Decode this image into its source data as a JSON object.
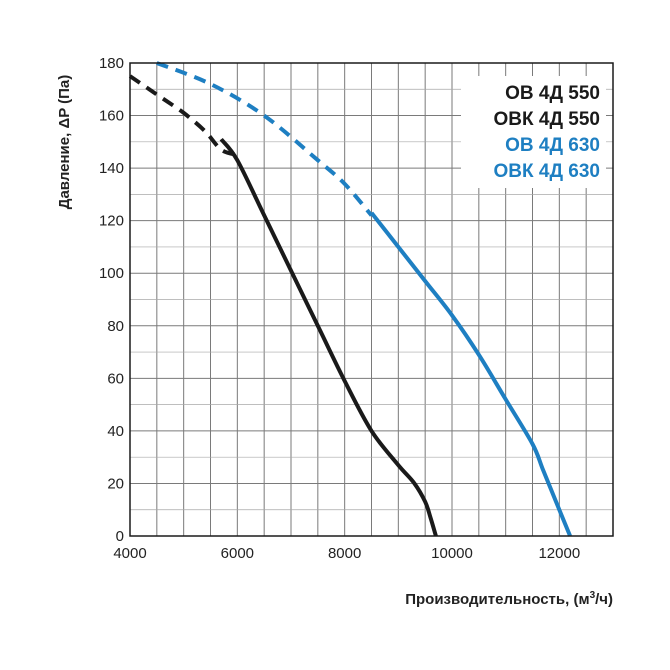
{
  "chart_data": {
    "type": "line",
    "xlabel": "Производительность, (м³/ч)",
    "xlabel_main": "Производительность, (м",
    "xlabel_sup": "3",
    "xlabel_tail": "/ч)",
    "ylabel": "Давление, ΔP (Па)",
    "xlim": [
      4000,
      13000
    ],
    "ylim": [
      0,
      180
    ],
    "x_ticks": [
      4000,
      6000,
      8000,
      10000,
      12000
    ],
    "y_ticks": [
      0,
      20,
      40,
      60,
      80,
      100,
      120,
      140,
      160,
      180
    ],
    "grid": true,
    "legend_position": "top-right",
    "legend": [
      {
        "label": "ОВ 4Д 550",
        "color": "#1a1a1a"
      },
      {
        "label": "ОВК 4Д 550",
        "color": "#1a1a1a"
      },
      {
        "label": "ОВ 4Д 630",
        "color": "#1e7fc2"
      },
      {
        "label": "ОВК 4Д 630",
        "color": "#1e7fc2"
      }
    ],
    "series": [
      {
        "color": "#1a1a1a",
        "dashed_points": [
          [
            4000,
            175
          ],
          [
            4500,
            168
          ],
          [
            5000,
            161
          ],
          [
            5400,
            154
          ],
          [
            5700,
            147
          ],
          [
            6000,
            145
          ]
        ],
        "solid_points": [
          [
            5700,
            151
          ],
          [
            6000,
            143
          ],
          [
            6500,
            122
          ],
          [
            7000,
            101
          ],
          [
            7500,
            80
          ],
          [
            8000,
            59
          ],
          [
            8500,
            40
          ],
          [
            9000,
            27
          ],
          [
            9300,
            20
          ],
          [
            9500,
            13
          ],
          [
            9600,
            7
          ],
          [
            9700,
            0
          ]
        ]
      },
      {
        "color": "#1e7fc2",
        "dashed_points": [
          [
            4500,
            180
          ],
          [
            5500,
            172
          ],
          [
            6500,
            160
          ],
          [
            7500,
            143
          ],
          [
            8000,
            134
          ],
          [
            8500,
            122
          ]
        ],
        "solid_points": [
          [
            8500,
            123
          ],
          [
            9000,
            110
          ],
          [
            9500,
            97
          ],
          [
            10000,
            84
          ],
          [
            10500,
            69
          ],
          [
            11000,
            52
          ],
          [
            11500,
            35
          ],
          [
            11700,
            25
          ],
          [
            12000,
            10
          ],
          [
            12200,
            0
          ]
        ]
      }
    ]
  }
}
